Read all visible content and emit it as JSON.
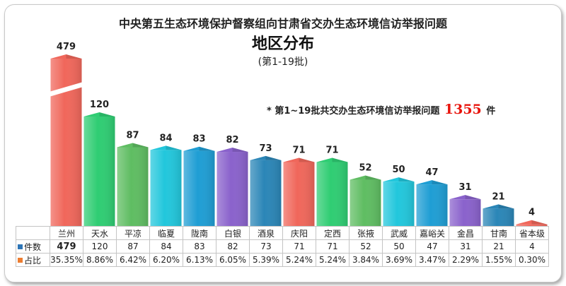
{
  "header": {
    "title": "中央第五生态环境保护督察组向甘肃省交办生态环境信访举报问题",
    "subtitle": "地区分布",
    "batch": "(第1-19批)"
  },
  "note": {
    "prefix": "* 第1~19批共交办生态环境信访举报问题",
    "total": "1355",
    "suffix": "件"
  },
  "legend": {
    "count_label": "件数",
    "count_color": "#2e75b6",
    "share_label": "占比",
    "share_color": "#ed7d31"
  },
  "chart_data": {
    "type": "bar",
    "categories": [
      "兰州",
      "天水",
      "平凉",
      "临夏",
      "陇南",
      "白银",
      "酒泉",
      "庆阳",
      "定西",
      "张掖",
      "武威",
      "嘉峪关",
      "金昌",
      "甘南",
      "省本级"
    ],
    "values": [
      479,
      120,
      87,
      84,
      83,
      82,
      73,
      71,
      71,
      52,
      50,
      47,
      31,
      21,
      4
    ],
    "value_labels": [
      "479",
      "120",
      "87",
      "84",
      "83",
      "82",
      "73",
      "71",
      "71",
      "52",
      "50",
      "47",
      "31",
      "21",
      "4"
    ],
    "shares": [
      "35.35%",
      "8.86%",
      "6.42%",
      "6.20%",
      "6.13%",
      "6.05%",
      "5.39%",
      "5.24%",
      "5.24%",
      "3.84%",
      "3.69%",
      "3.47%",
      "2.29%",
      "1.55%",
      "0.30%"
    ],
    "colors": [
      "#f0675b",
      "#2fcd73",
      "#5fbd62",
      "#22c7dc",
      "#1f9ed4",
      "#8a62cc",
      "#2b86b7",
      "#f0675b",
      "#2fcd73",
      "#5fbd62",
      "#22c7dc",
      "#1f9ed4",
      "#8a62cc",
      "#2b86b7",
      "#f0675b"
    ],
    "axis_break": true
  }
}
